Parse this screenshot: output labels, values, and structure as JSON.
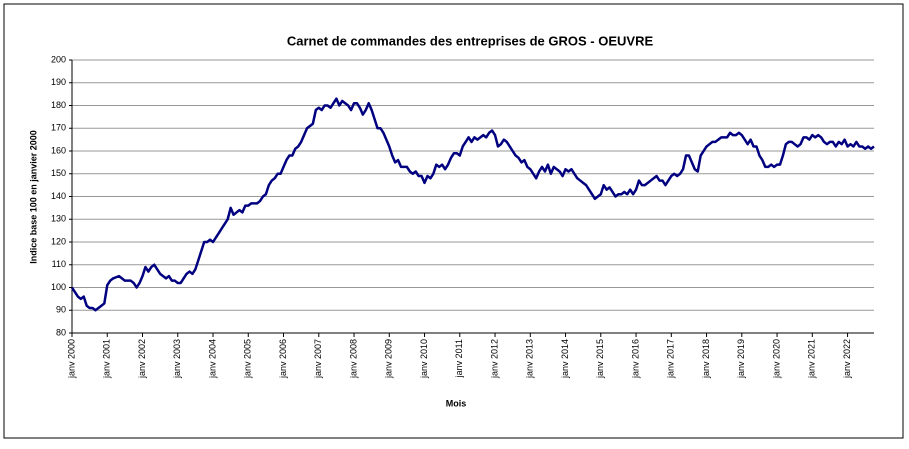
{
  "chart_data": {
    "type": "line",
    "title": "Carnet de commandes des entreprises de GROS - OEUVRE",
    "xlabel": "Mois",
    "ylabel": "Indice base 100 en janvier 2000",
    "categories": [
      "janv 2000",
      null,
      null,
      null,
      null,
      null,
      null,
      null,
      null,
      null,
      null,
      null,
      "janv 2001",
      null,
      null,
      null,
      null,
      null,
      null,
      null,
      null,
      null,
      null,
      null,
      "janv 2002",
      null,
      null,
      null,
      null,
      null,
      null,
      null,
      null,
      null,
      null,
      null,
      "janv 2003",
      null,
      null,
      null,
      null,
      null,
      null,
      null,
      null,
      null,
      null,
      null,
      "janv 2004",
      null,
      null,
      null,
      null,
      null,
      null,
      null,
      null,
      null,
      null,
      null,
      "janv 2005",
      null,
      null,
      null,
      null,
      null,
      null,
      null,
      null,
      null,
      null,
      null,
      "janv 2006",
      null,
      null,
      null,
      null,
      null,
      null,
      null,
      null,
      null,
      null,
      null,
      "janv 2007",
      null,
      null,
      null,
      null,
      null,
      null,
      null,
      null,
      null,
      null,
      null,
      "janv 2008",
      null,
      null,
      null,
      null,
      null,
      null,
      null,
      null,
      null,
      null,
      null,
      "janv 2009",
      null,
      null,
      null,
      null,
      null,
      null,
      null,
      null,
      null,
      null,
      null,
      "janv 2010",
      null,
      null,
      null,
      null,
      null,
      null,
      null,
      null,
      null,
      null,
      null,
      "janv 2011",
      null,
      null,
      null,
      null,
      null,
      null,
      null,
      null,
      null,
      null,
      null,
      "janv 2012",
      null,
      null,
      null,
      null,
      null,
      null,
      null,
      null,
      null,
      null,
      null,
      "janv 2013",
      null,
      null,
      null,
      null,
      null,
      null,
      null,
      null,
      null,
      null,
      null,
      "janv 2014",
      null,
      null,
      null,
      null,
      null,
      null,
      null,
      null,
      null,
      null,
      null,
      "janv 2015",
      null,
      null,
      null,
      null,
      null,
      null,
      null,
      null,
      null,
      null,
      null,
      "janv 2016",
      null,
      null,
      null,
      null,
      null,
      null,
      null,
      null,
      null,
      null,
      null,
      "janv 2017",
      null,
      null,
      null,
      null,
      null,
      null,
      null,
      null,
      null,
      null,
      null,
      "janv 2018",
      null,
      null,
      null,
      null,
      null,
      null,
      null,
      null,
      null,
      null,
      null,
      "janv 2019",
      null,
      null,
      null,
      null,
      null,
      null,
      null,
      null,
      null,
      null,
      null,
      "janv 2020",
      null,
      null,
      null,
      null,
      null,
      null,
      null,
      null,
      null,
      null,
      null,
      "janv 2021",
      null,
      null,
      null,
      null,
      null,
      null,
      null,
      null,
      null,
      null,
      null,
      "janv 2022",
      null,
      null,
      null,
      null,
      null,
      null,
      null,
      null,
      null
    ],
    "series": [
      {
        "color": "#000080",
        "values": [
          100,
          98,
          96,
          95,
          96,
          92,
          91,
          91,
          90,
          91,
          92,
          93,
          101,
          103,
          104,
          104.5,
          105,
          104,
          103,
          103,
          103,
          102,
          100,
          102,
          105,
          109,
          107,
          109,
          110,
          108,
          106,
          105,
          104,
          105,
          103,
          103,
          102,
          102,
          104,
          106,
          107,
          106,
          108,
          112,
          116,
          120,
          120,
          121,
          120,
          122,
          124,
          126,
          128,
          130,
          135,
          132,
          133,
          134,
          133,
          136,
          136,
          137,
          137,
          137,
          138,
          140,
          141,
          145,
          147,
          148,
          150,
          150,
          153,
          156,
          158,
          158,
          161,
          162,
          164,
          167,
          170,
          171,
          172,
          178,
          179,
          178,
          180,
          180,
          179,
          181,
          183,
          180,
          182,
          181,
          180,
          178,
          181,
          181,
          179,
          176,
          178,
          181,
          178,
          174,
          170,
          170,
          168,
          165,
          162,
          158,
          155,
          156,
          153,
          153,
          153,
          151,
          150,
          151,
          149,
          149,
          146,
          149,
          148,
          150,
          154,
          153,
          154,
          152,
          154,
          157,
          159,
          159,
          158,
          162,
          164,
          166,
          164,
          166,
          165,
          166,
          167,
          166,
          168,
          169,
          167,
          162,
          163,
          165,
          164,
          162,
          160,
          158,
          157,
          155,
          156,
          153,
          152,
          150,
          148,
          151,
          153,
          151,
          154,
          150,
          153,
          152,
          151,
          149,
          152,
          151,
          152,
          150,
          148,
          147,
          146,
          145,
          143,
          141,
          139,
          140,
          141,
          145,
          143,
          144,
          142,
          140,
          141,
          141,
          142,
          141,
          143,
          141,
          143,
          147,
          145,
          145,
          146,
          147,
          148,
          149,
          147,
          147,
          145,
          147,
          149,
          150,
          149,
          150,
          152,
          158,
          158,
          155,
          152,
          151,
          158,
          160,
          162,
          163,
          164,
          164,
          165,
          166,
          166,
          166,
          168,
          167,
          167,
          168,
          167,
          165,
          163,
          165,
          162,
          162,
          158,
          156,
          153,
          153,
          154,
          153,
          154,
          154,
          158,
          163,
          164,
          164,
          163,
          162,
          163,
          166,
          166,
          165,
          167,
          166,
          167,
          166,
          164,
          163,
          164,
          164,
          162,
          164,
          163,
          165,
          162,
          163,
          162,
          164,
          162,
          162,
          161,
          162,
          161,
          162
        ]
      }
    ],
    "ylim": [
      80,
      200
    ],
    "yticks": [
      80,
      90,
      100,
      110,
      120,
      130,
      140,
      150,
      160,
      170,
      180,
      190,
      200
    ],
    "grid": true
  }
}
